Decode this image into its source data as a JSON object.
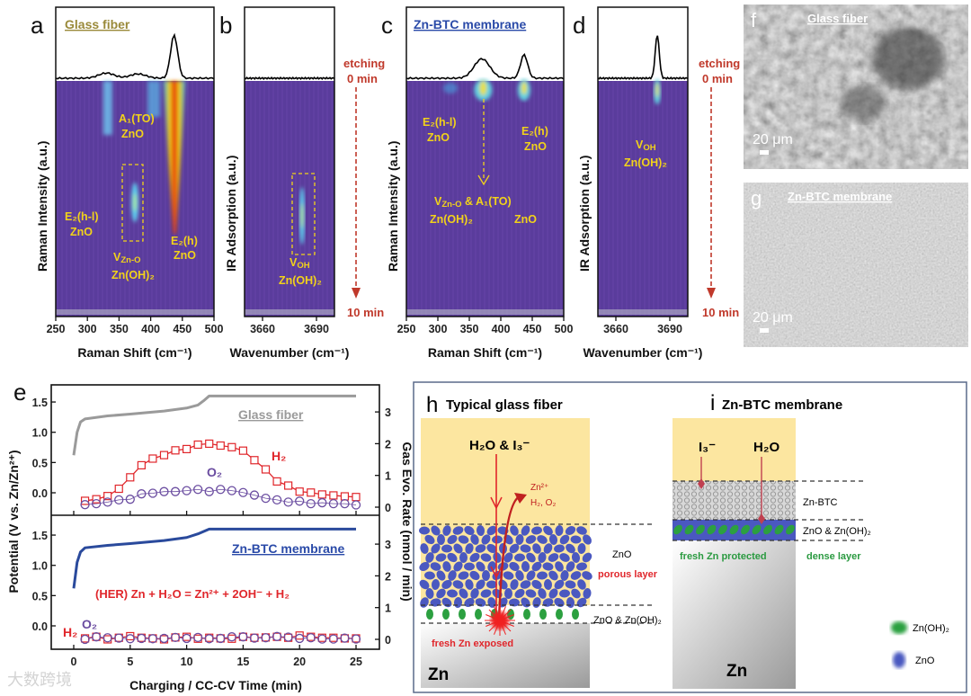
{
  "panels": {
    "a": {
      "letter": "a",
      "title": "Glass fiber",
      "ylabel": "Raman Intensity (a.u.)",
      "xlabel": "Raman Shift (cm⁻¹)",
      "labels": {
        "a1": "A₁(TO)",
        "a1_sub": "ZnO",
        "e2hl": "E₂(h-l)",
        "e2hl_sub": "ZnO",
        "vzn": "V",
        "vzn_sub": "Zn-O",
        "vzn_sub2": "Zn(OH)₂",
        "e2h": "E₂(h)",
        "e2h_sub": "ZnO"
      }
    },
    "b": {
      "letter": "b",
      "ylabel": "IR Adsorption (a.u.)",
      "xlabel": "Wavenumber (cm⁻¹)",
      "labels": {
        "v": "V",
        "v_sub": "OH",
        "v_sub2": "Zn(OH)₂"
      },
      "etching_start": "etching",
      "etching_start2": "0 min",
      "etching_end": "10 min"
    },
    "c": {
      "letter": "c",
      "title": "Zn-BTC membrane",
      "ylabel": "Raman Intensity (a.u.)",
      "xlabel": "Raman Shift (cm⁻¹)",
      "labels": {
        "e2hl": "E₂(h-l)",
        "e2hl_sub": "ZnO",
        "e2h": "E₂(h)",
        "e2h_sub": "ZnO",
        "vzn": "V",
        "vzn_sub": "Zn-O",
        "amp": " & A₁(TO)",
        "zoh": "Zn(OH)₂",
        "zno": "ZnO"
      }
    },
    "d": {
      "letter": "d",
      "ylabel": "IR Adsorption (a.u.)",
      "xlabel": "Wavenumber (cm⁻¹)",
      "labels": {
        "v": "V",
        "v_sub": "OH",
        "v_sub2": "Zn(OH)₂"
      },
      "etching_start": "etching",
      "etching_start2": "0 min",
      "etching_end": "10 min"
    },
    "f": {
      "letter": "f",
      "title": "Glass fiber",
      "scale": "20 μm"
    },
    "g": {
      "letter": "g",
      "title": "Zn-BTC membrane",
      "scale": "20 μm"
    },
    "h": {
      "letter": "h",
      "title": "Typical glass fiber",
      "in": "H₂O & I₃⁻",
      "out1": "Zn²⁺",
      "out2": "H₂, O₂",
      "zno": "ZnO",
      "porous": "porous layer",
      "mixed": "ZnO & Zn(OH)₂",
      "fresh": "fresh Zn exposed",
      "zn": "Zn"
    },
    "i": {
      "letter": "i",
      "title": "Zn-BTC membrane",
      "i3": "I₃⁻",
      "h2o": "H₂O",
      "znbtc": "Zn-BTC",
      "mixed": "ZnO & Zn(OH)₂",
      "fresh": "fresh Zn protected",
      "dense": "dense layer",
      "zn": "Zn",
      "legend_zoh": "Zn(OH)₂",
      "legend_zno": "ZnO"
    }
  },
  "watermark": "大数跨境",
  "colors": {
    "heat_bg": "#5a3c9c",
    "label_yellow": "#f2d21a",
    "red": "#e0262b",
    "blue_line": "#2a4a9c",
    "gray_line": "#9a9a9a",
    "o2": "#6a4ca0"
  },
  "chart_data": [
    {
      "type": "heatmap",
      "panel": "a",
      "xlim": [
        250,
        500
      ],
      "xticks": [
        250,
        300,
        350,
        400,
        450,
        500
      ],
      "peaks": [
        330,
        380,
        437
      ],
      "peak_heights": [
        0.12,
        0.1,
        1.0
      ]
    },
    {
      "type": "heatmap",
      "panel": "b",
      "xticks": [
        3660,
        3690
      ],
      "xlim": [
        3650,
        3700
      ],
      "peaks": [
        3682
      ],
      "peak_heights": [
        0.0
      ]
    },
    {
      "type": "heatmap",
      "panel": "c",
      "xlim": [
        250,
        500
      ],
      "xticks": [
        250,
        300,
        350,
        400,
        450,
        500
      ],
      "peaks": [
        370,
        437
      ],
      "peak_heights": [
        0.45,
        0.55
      ]
    },
    {
      "type": "heatmap",
      "panel": "d",
      "xticks": [
        3660,
        3690
      ],
      "xlim": [
        3650,
        3700
      ],
      "peaks": [
        3683
      ],
      "peak_heights": [
        1.0
      ]
    },
    {
      "type": "line",
      "panel": "e",
      "xlabel": "Charging / CC-CV Time (min)",
      "ylabel": "Potential (V vs. Zn/Zn²⁺)",
      "ylabel_right": "Gas Evo. Rate (nmol / min)",
      "xlim": [
        -2,
        27
      ],
      "xticks": [
        0,
        5,
        10,
        15,
        20,
        25
      ],
      "ylim": [
        -0.35,
        1.75
      ],
      "yticks": [
        "0.0",
        "0.5",
        "1.0",
        "1.5"
      ],
      "ylim_right": [
        -0.3,
        3.6
      ],
      "yticks_right": [
        "0",
        "1",
        "2",
        "3"
      ],
      "subplots": [
        {
          "name": "Glass fiber",
          "h2_label": "H₂",
          "o2_label": "O₂",
          "potential": {
            "x": [
              0,
              0.3,
              0.6,
              1,
              3,
              5,
              8,
              10,
              11,
              11.5,
              12,
              25
            ],
            "y": [
              0.62,
              1.0,
              1.17,
              1.22,
              1.27,
              1.3,
              1.35,
              1.4,
              1.45,
              1.52,
              1.6,
              1.6
            ]
          },
          "h2": {
            "x": [
              1,
              2,
              3,
              4,
              5,
              6,
              7,
              8,
              9,
              10,
              11,
              12,
              13,
              14,
              15,
              16,
              17,
              18,
              19,
              20,
              21,
              22,
              23,
              24,
              25
            ],
            "y": [
              0.2,
              0.25,
              0.35,
              0.58,
              0.94,
              1.32,
              1.53,
              1.64,
              1.79,
              1.83,
              1.97,
              2.0,
              1.94,
              1.89,
              1.78,
              1.48,
              1.19,
              0.81,
              0.68,
              0.49,
              0.46,
              0.4,
              0.37,
              0.34,
              0.32
            ]
          },
          "o2": {
            "x": [
              1,
              2,
              3,
              4,
              5,
              6,
              7,
              8,
              9,
              10,
              11,
              12,
              13,
              14,
              15,
              16,
              17,
              18,
              19,
              20,
              21,
              22,
              23,
              24,
              25
            ],
            "y": [
              0.08,
              0.11,
              0.16,
              0.23,
              0.25,
              0.42,
              0.44,
              0.49,
              0.49,
              0.52,
              0.56,
              0.49,
              0.56,
              0.52,
              0.46,
              0.38,
              0.28,
              0.23,
              0.16,
              0.19,
              0.11,
              0.14,
              0.11,
              0.11,
              0.07
            ]
          }
        },
        {
          "name": "Zn-BTC membrane",
          "h2_label": "H₂",
          "o2_label": "O₂",
          "equation": "(HER) Zn + H₂O = Zn²⁺ + 2OH⁻ + H₂",
          "potential": {
            "x": [
              0,
              0.3,
              0.6,
              1,
              3,
              5,
              8,
              10,
              11,
              12,
              25
            ],
            "y": [
              0.62,
              1.05,
              1.22,
              1.29,
              1.33,
              1.36,
              1.41,
              1.46,
              1.52,
              1.6,
              1.6
            ]
          },
          "h2": {
            "x": [
              1,
              2,
              3,
              4,
              5,
              6,
              7,
              8,
              9,
              10,
              11,
              12,
              13,
              14,
              15,
              16,
              17,
              18,
              19,
              20,
              21,
              22,
              23,
              24,
              25
            ],
            "y": [
              0.03,
              0.08,
              0.0,
              0.05,
              0.1,
              0.05,
              0.03,
              0.0,
              0.06,
              0.08,
              0.02,
              0.05,
              0.03,
              0.02,
              0.08,
              0.05,
              0.06,
              0.08,
              0.05,
              0.12,
              0.08,
              0.05,
              0.05,
              0.03,
              0.03
            ]
          },
          "o2": {
            "x": [
              1,
              2,
              3,
              4,
              5,
              6,
              7,
              8,
              9,
              10,
              11,
              12,
              13,
              14,
              15,
              16,
              17,
              18,
              19,
              20,
              21,
              22,
              23,
              24,
              25
            ],
            "y": [
              0.0,
              0.08,
              0.05,
              0.04,
              0.02,
              0.03,
              0.02,
              0.03,
              0.06,
              0.03,
              0.06,
              0.02,
              0.03,
              0.08,
              0.08,
              0.04,
              0.05,
              0.09,
              0.07,
              0.03,
              0.05,
              0.01,
              0.01,
              0.04,
              0.01
            ]
          }
        }
      ]
    }
  ]
}
